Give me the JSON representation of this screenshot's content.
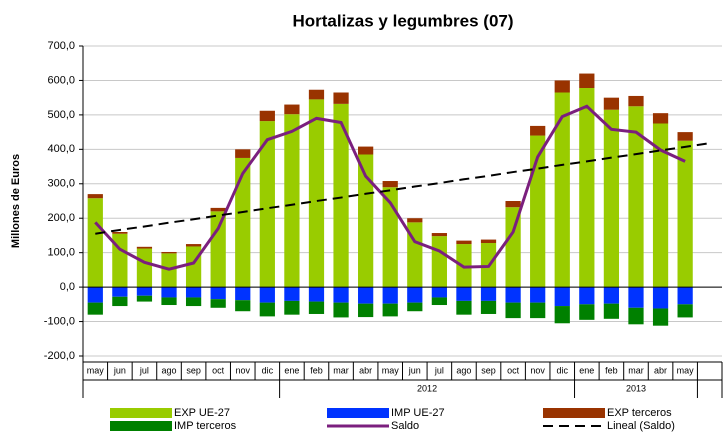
{
  "chart_data": {
    "type": "bar",
    "title": "Hortalizas y legumbres (07)",
    "y_label": "Millones de Euros",
    "categories": [
      "may",
      "jun",
      "jul",
      "ago",
      "sep",
      "oct",
      "nov",
      "dic",
      "ene",
      "feb",
      "mar",
      "abr",
      "may",
      "jun",
      "jul",
      "ago",
      "sep",
      "oct",
      "nov",
      "dic",
      "ene",
      "feb",
      "mar",
      "abr",
      "may",
      null
    ],
    "groups": [
      {
        "label": "2012",
        "start": 8,
        "end": 19
      },
      {
        "label": "2013",
        "start": 20,
        "end": 24
      }
    ],
    "ylim": [
      -200,
      700
    ],
    "yticks": [
      {
        "value": -200,
        "label": "-200,0"
      },
      {
        "value": -100,
        "label": "-100,0"
      },
      {
        "value": 0,
        "label": "0,0"
      },
      {
        "value": 100,
        "label": "100,0"
      },
      {
        "value": 200,
        "label": "200,0"
      },
      {
        "value": 300,
        "label": "300,0"
      },
      {
        "value": 400,
        "label": "400,0"
      },
      {
        "value": 500,
        "label": "500,0"
      },
      {
        "value": 600,
        "label": "600,0"
      },
      {
        "value": 700,
        "label": "700,0"
      }
    ],
    "grid": true,
    "legend": "bottom",
    "series": [
      {
        "name": "EXP UE-27",
        "type": "bar",
        "color": "#99cc00",
        "values": [
          258,
          155,
          112,
          98,
          118,
          220,
          375,
          482,
          502,
          545,
          532,
          385,
          290,
          188,
          148,
          125,
          128,
          232,
          440,
          565,
          578,
          515,
          525,
          475,
          425,
          null
        ]
      },
      {
        "name": "IMP UE-27",
        "type": "bar",
        "color": "#0033ff",
        "values": [
          -45,
          -28,
          -25,
          -30,
          -30,
          -35,
          -38,
          -45,
          -40,
          -42,
          -45,
          -48,
          -48,
          -45,
          -30,
          -40,
          -40,
          -45,
          -45,
          -55,
          -50,
          -48,
          -60,
          -62,
          -50,
          null
        ]
      },
      {
        "name": "EXP terceros",
        "type": "bar",
        "color": "#993300",
        "values": [
          12,
          5,
          5,
          4,
          7,
          10,
          25,
          30,
          28,
          28,
          33,
          23,
          18,
          12,
          9,
          10,
          10,
          18,
          28,
          35,
          42,
          35,
          30,
          30,
          25,
          null
        ]
      },
      {
        "name": "IMP terceros",
        "type": "bar",
        "color": "#008000",
        "values": [
          -35,
          -27,
          -17,
          -22,
          -25,
          -25,
          -32,
          -40,
          -40,
          -36,
          -43,
          -39,
          -37,
          -25,
          -22,
          -40,
          -38,
          -45,
          -45,
          -50,
          -45,
          -44,
          -48,
          -50,
          -38,
          null
        ]
      },
      {
        "name": "Saldo",
        "type": "line",
        "color": "#7b1f7e",
        "values": [
          188,
          110,
          72,
          52,
          70,
          170,
          330,
          428,
          452,
          490,
          478,
          322,
          245,
          132,
          105,
          58,
          60,
          160,
          378,
          495,
          525,
          458,
          450,
          398,
          365,
          null
        ]
      },
      {
        "name": "Lineal (Saldo)",
        "type": "line",
        "color": "#000000",
        "dashed": true,
        "values": [
          155,
          166,
          176,
          187,
          197,
          208,
          218,
          229,
          239,
          250,
          260,
          271,
          281,
          292,
          302,
          313,
          323,
          334,
          344,
          355,
          365,
          376,
          386,
          397,
          407,
          418
        ]
      }
    ]
  }
}
